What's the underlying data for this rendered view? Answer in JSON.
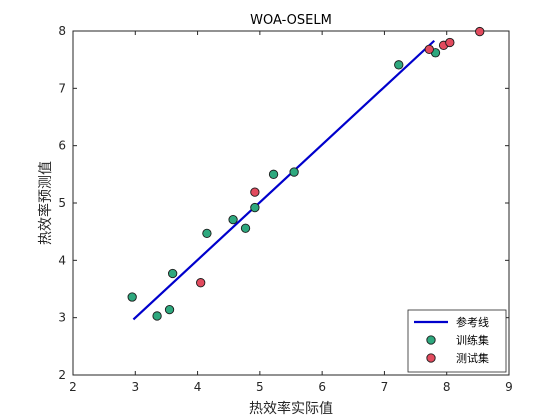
{
  "chart_data": {
    "type": "scatter",
    "title": "WOA-OSELM",
    "xlabel": "热效率实际值",
    "ylabel": "热效率预测值",
    "xlim": [
      2,
      9
    ],
    "ylim": [
      2,
      8
    ],
    "xticks": [
      "2",
      "3",
      "4",
      "5",
      "6",
      "7",
      "8",
      "9"
    ],
    "yticks": [
      "2",
      "3",
      "4",
      "5",
      "6",
      "7",
      "8"
    ],
    "grid": false,
    "legend_position": "bottom-right",
    "series": [
      {
        "name": "参考线",
        "kind": "line",
        "color": "#0000cc",
        "points": [
          [
            2.97,
            2.97
          ],
          [
            7.8,
            7.83
          ]
        ]
      },
      {
        "name": "训练集",
        "kind": "scatter",
        "color": "#2ea87e",
        "points": [
          [
            2.95,
            3.36
          ],
          [
            3.35,
            3.03
          ],
          [
            3.55,
            3.14
          ],
          [
            3.6,
            3.77
          ],
          [
            4.15,
            4.47
          ],
          [
            4.57,
            4.71
          ],
          [
            4.77,
            4.56
          ],
          [
            4.92,
            4.92
          ],
          [
            5.22,
            5.5
          ],
          [
            5.55,
            5.54
          ],
          [
            7.23,
            7.41
          ],
          [
            7.82,
            7.62
          ]
        ]
      },
      {
        "name": "测试集",
        "kind": "scatter",
        "color": "#e24b5e",
        "points": [
          [
            4.05,
            3.61
          ],
          [
            4.92,
            5.19
          ],
          [
            7.72,
            7.68
          ],
          [
            7.95,
            7.75
          ],
          [
            8.05,
            7.8
          ],
          [
            8.53,
            7.99
          ]
        ]
      }
    ]
  }
}
